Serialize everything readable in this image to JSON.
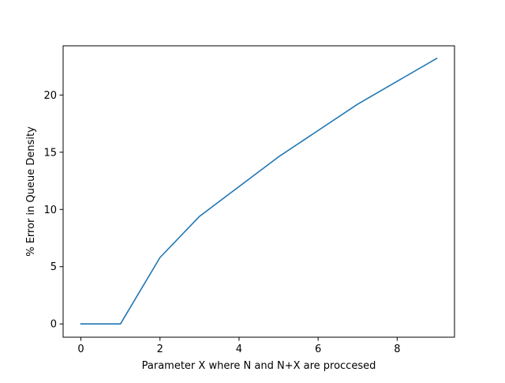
{
  "chart_data": {
    "type": "line",
    "title": "",
    "xlabel": "Parameter X where N and N+X are proccesed",
    "ylabel": "% Error in Queue Density",
    "xlim": [
      -0.45,
      9.45
    ],
    "ylim": [
      -1.16,
      24.3
    ],
    "xticks": [
      0,
      2,
      4,
      6,
      8
    ],
    "xtick_labels": [
      "0",
      "2",
      "4",
      "6",
      "8"
    ],
    "yticks": [
      0,
      5,
      10,
      15,
      20
    ],
    "ytick_labels": [
      "0",
      "5",
      "10",
      "15",
      "20"
    ],
    "grid": false,
    "legend": "none",
    "series": [
      {
        "color": "#1f77b4",
        "x": [
          0,
          1,
          2,
          3,
          4,
          5,
          6,
          7,
          8,
          9
        ],
        "y": [
          0,
          0,
          5.8,
          9.4,
          12.0,
          14.6,
          16.9,
          19.2,
          21.2,
          23.2
        ]
      }
    ]
  }
}
